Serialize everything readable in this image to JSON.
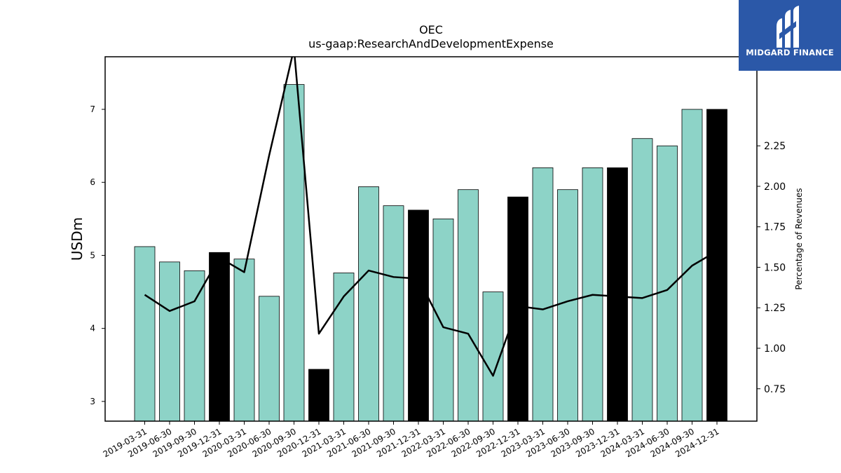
{
  "chart_data": {
    "type": "bar",
    "title": "OEC",
    "subtitle": "us-gaap:ResearchAndDevelopmentExpense",
    "ylabel": "USDm",
    "ylabel_right": "Percentage of Revenues",
    "ylim": [
      2.73,
      7.72
    ],
    "ylim_right": [
      0.55,
      2.8
    ],
    "yticks": [
      3,
      4,
      5,
      6,
      7
    ],
    "yticks_right": [
      "0.75",
      "1.00",
      "1.25",
      "1.50",
      "1.75",
      "2.00",
      "2.25"
    ],
    "categories": [
      "2019-03-31",
      "2019-06-30",
      "2019-09-30",
      "2019-12-31",
      "2020-03-31",
      "2020-06-30",
      "2020-09-30",
      "2020-12-31",
      "2021-03-31",
      "2021-06-30",
      "2021-09-30",
      "2021-12-31",
      "2022-03-31",
      "2022-06-30",
      "2022-09-30",
      "2022-12-31",
      "2023-03-31",
      "2023-06-30",
      "2023-09-30",
      "2023-12-31",
      "2024-03-31",
      "2024-06-30",
      "2024-09-30",
      "2024-12-31"
    ],
    "values": [
      5.12,
      4.91,
      4.79,
      5.04,
      4.95,
      4.44,
      7.34,
      3.44,
      4.76,
      5.94,
      5.68,
      5.62,
      5.5,
      5.9,
      4.5,
      5.8,
      6.2,
      5.9,
      6.2,
      6.2,
      6.6,
      6.5,
      7.0,
      7.0
    ],
    "highlight": [
      false,
      false,
      false,
      true,
      false,
      false,
      false,
      true,
      false,
      false,
      false,
      true,
      false,
      false,
      false,
      true,
      false,
      false,
      false,
      true,
      false,
      false,
      false,
      true
    ],
    "line_series": {
      "name": "Percentage of Revenues",
      "values": [
        1.33,
        1.23,
        1.29,
        1.56,
        1.47,
        2.19,
        2.85,
        1.09,
        1.32,
        1.48,
        1.44,
        1.43,
        1.13,
        1.09,
        0.83,
        1.26,
        1.24,
        1.29,
        1.33,
        1.32,
        1.31,
        1.36,
        1.51,
        1.6
      ]
    },
    "colors": {
      "bar": "#8dd3c7",
      "bar_highlight": "#000000",
      "line": "#000000"
    },
    "legend": "none",
    "grid": false
  },
  "logo": {
    "text": "MIDGARD FINANCE",
    "background": "#2b58a8"
  }
}
